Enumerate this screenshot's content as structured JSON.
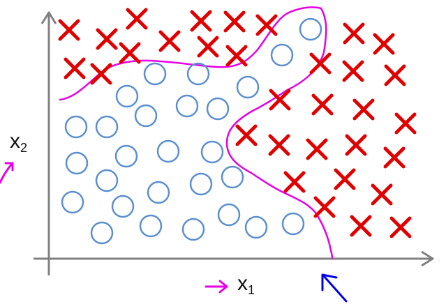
{
  "labels": {
    "x_axis": {
      "letter": "x",
      "subscript": "1"
    },
    "y_axis": {
      "letter": "x",
      "subscript": "2"
    }
  },
  "colors": {
    "axis": "#808080",
    "cross": "#e00000",
    "circle": "#5b8fd0",
    "decision_boundary": "#e600e6",
    "pointer_arrow": "#0000e6",
    "text": "#111111"
  },
  "marks": {
    "circle": "o",
    "cross": "x"
  },
  "annotations": {
    "x_axis_pointer": "magenta-arrow-icon",
    "y_axis_pointer": "magenta-arrow-icon",
    "boundary_pointer": "blue-arrow-icon"
  }
}
